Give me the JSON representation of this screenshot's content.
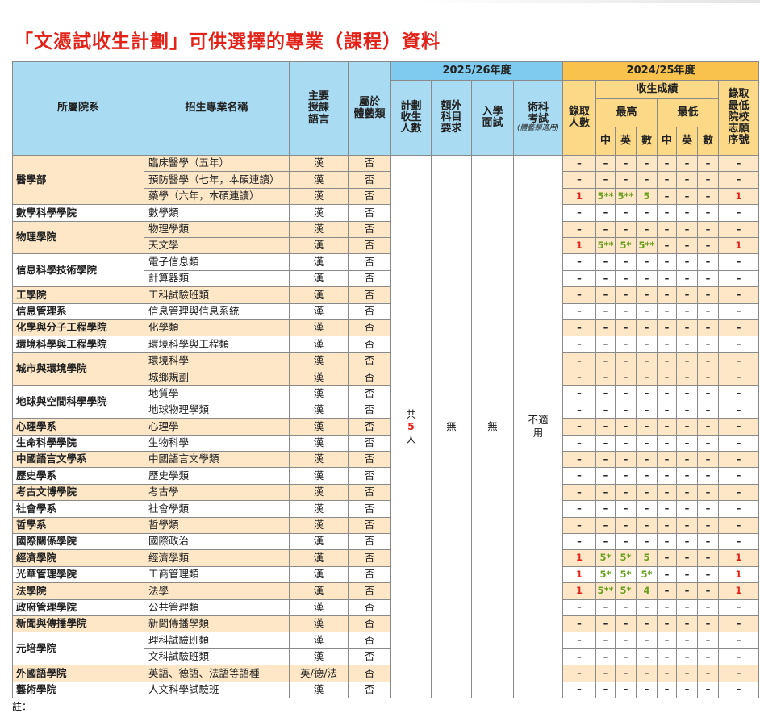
{
  "title": "「文憑試收生計劃」可供選擇的專業（課程）資料",
  "table": {
    "header": {
      "dept": "所屬院系",
      "program": "招生專業名稱",
      "language": "主要\n授課\n語言",
      "arts": "屬於\n體藝類",
      "year_2025": "2025/26年度",
      "plan_intake": "計劃\n收生\n人數",
      "extra_subject": "額外\n科目\n要求",
      "interview": "入學\n面試",
      "skills_test": "術科\n考試",
      "skills_test_note": "(體藝類適用)",
      "year_2024": "2024/25年度",
      "admitted": "錄取\n人數",
      "scores": "收生成績",
      "highest": "最高",
      "lowest": "最低",
      "subjects": [
        "中",
        "英",
        "數"
      ],
      "min_preference": "錄取\n最低\n院校\n志願\n序號"
    },
    "merged": {
      "intake": [
        "共",
        5,
        "人"
      ],
      "extra_subject": "無",
      "interview": "無",
      "skills_test": "不適\n用"
    },
    "groups": [
      {
        "dept": "醫學部",
        "programs": [
          {
            "name": "臨床醫學（五年）",
            "lang": "漢",
            "arts": "否",
            "results": [
              "–",
              "–",
              "–",
              "–",
              "–",
              "–",
              "–",
              "–"
            ]
          },
          {
            "name": "預防醫學（七年，本碩連讀）",
            "lang": "漢",
            "arts": "否",
            "results": [
              "–",
              "–",
              "–",
              "–",
              "–",
              "–",
              "–",
              "–"
            ]
          },
          {
            "name": "藥學（六年，本碩連讀）",
            "lang": "漢",
            "arts": "否",
            "results": [
              1,
              "5**",
              "5**",
              5,
              "–",
              "–",
              "–",
              1
            ]
          }
        ]
      },
      {
        "dept": "數學科學學院",
        "programs": [
          {
            "name": "數學類",
            "lang": "漢",
            "arts": "否",
            "results": [
              "–",
              "–",
              "–",
              "–",
              "–",
              "–",
              "–",
              "–"
            ]
          }
        ]
      },
      {
        "dept": "物理學院",
        "programs": [
          {
            "name": "物理學類",
            "lang": "漢",
            "arts": "否",
            "results": [
              "–",
              "–",
              "–",
              "–",
              "–",
              "–",
              "–",
              "–"
            ]
          },
          {
            "name": "天文學",
            "lang": "漢",
            "arts": "否",
            "results": [
              1,
              "5**",
              "5*",
              "5**",
              "–",
              "–",
              "–",
              1
            ]
          }
        ]
      },
      {
        "dept": "信息科學技術學院",
        "programs": [
          {
            "name": "電子信息類",
            "lang": "漢",
            "arts": "否",
            "results": [
              "–",
              "–",
              "–",
              "–",
              "–",
              "–",
              "–",
              "–"
            ]
          },
          {
            "name": "計算器類",
            "lang": "漢",
            "arts": "否",
            "results": [
              "–",
              "–",
              "–",
              "–",
              "–",
              "–",
              "–",
              "–"
            ]
          }
        ]
      },
      {
        "dept": "工學院",
        "programs": [
          {
            "name": "工科試驗班類",
            "lang": "漢",
            "arts": "否",
            "results": [
              "–",
              "–",
              "–",
              "–",
              "–",
              "–",
              "–",
              "–"
            ]
          }
        ]
      },
      {
        "dept": "信息管理系",
        "programs": [
          {
            "name": "信息管理與信息系統",
            "lang": "漢",
            "arts": "否",
            "results": [
              "–",
              "–",
              "–",
              "–",
              "–",
              "–",
              "–",
              "–"
            ]
          }
        ]
      },
      {
        "dept": "化學與分子工程學院",
        "programs": [
          {
            "name": "化學類",
            "lang": "漢",
            "arts": "否",
            "results": [
              "–",
              "–",
              "–",
              "–",
              "–",
              "–",
              "–",
              "–"
            ]
          }
        ]
      },
      {
        "dept": "環境科學與工程學院",
        "programs": [
          {
            "name": "環境科學與工程類",
            "lang": "漢",
            "arts": "否",
            "results": [
              "–",
              "–",
              "–",
              "–",
              "–",
              "–",
              "–",
              "–"
            ]
          }
        ]
      },
      {
        "dept": "城市與環境學院",
        "programs": [
          {
            "name": "環境科學",
            "lang": "漢",
            "arts": "否",
            "results": [
              "–",
              "–",
              "–",
              "–",
              "–",
              "–",
              "–",
              "–"
            ]
          },
          {
            "name": "城鄉規劃",
            "lang": "漢",
            "arts": "否",
            "results": [
              "–",
              "–",
              "–",
              "–",
              "–",
              "–",
              "–",
              "–"
            ]
          }
        ]
      },
      {
        "dept": "地球與空間科學學院",
        "programs": [
          {
            "name": "地質學",
            "lang": "漢",
            "arts": "否",
            "results": [
              "–",
              "–",
              "–",
              "–",
              "–",
              "–",
              "–",
              "–"
            ]
          },
          {
            "name": "地球物理學類",
            "lang": "漢",
            "arts": "否",
            "results": [
              "–",
              "–",
              "–",
              "–",
              "–",
              "–",
              "–",
              "–"
            ]
          }
        ]
      },
      {
        "dept": "心理學系",
        "programs": [
          {
            "name": "心理學",
            "lang": "漢",
            "arts": "否",
            "results": [
              "–",
              "–",
              "–",
              "–",
              "–",
              "–",
              "–",
              "–"
            ]
          }
        ]
      },
      {
        "dept": "生命科學學院",
        "programs": [
          {
            "name": "生物科學",
            "lang": "漢",
            "arts": "否",
            "results": [
              "–",
              "–",
              "–",
              "–",
              "–",
              "–",
              "–",
              "–"
            ]
          }
        ]
      },
      {
        "dept": "中國語言文學系",
        "programs": [
          {
            "name": "中國語言文學類",
            "lang": "漢",
            "arts": "否",
            "results": [
              "–",
              "–",
              "–",
              "–",
              "–",
              "–",
              "–",
              "–"
            ]
          }
        ]
      },
      {
        "dept": "歷史學系",
        "programs": [
          {
            "name": "歷史學類",
            "lang": "漢",
            "arts": "否",
            "results": [
              "–",
              "–",
              "–",
              "–",
              "–",
              "–",
              "–",
              "–"
            ]
          }
        ]
      },
      {
        "dept": "考古文博學院",
        "programs": [
          {
            "name": "考古學",
            "lang": "漢",
            "arts": "否",
            "results": [
              "–",
              "–",
              "–",
              "–",
              "–",
              "–",
              "–",
              "–"
            ]
          }
        ]
      },
      {
        "dept": "社會學系",
        "programs": [
          {
            "name": "社會學類",
            "lang": "漢",
            "arts": "否",
            "results": [
              "–",
              "–",
              "–",
              "–",
              "–",
              "–",
              "–",
              "–"
            ]
          }
        ]
      },
      {
        "dept": "哲學系",
        "programs": [
          {
            "name": "哲學類",
            "lang": "漢",
            "arts": "否",
            "results": [
              "–",
              "–",
              "–",
              "–",
              "–",
              "–",
              "–",
              "–"
            ]
          }
        ]
      },
      {
        "dept": "國際關係學院",
        "programs": [
          {
            "name": "國際政治",
            "lang": "漢",
            "arts": "否",
            "results": [
              "–",
              "–",
              "–",
              "–",
              "–",
              "–",
              "–",
              "–"
            ]
          }
        ]
      },
      {
        "dept": "經濟學院",
        "programs": [
          {
            "name": "經濟學類",
            "lang": "漢",
            "arts": "否",
            "results": [
              1,
              "5*",
              "5*",
              5,
              "–",
              "–",
              "–",
              1
            ]
          }
        ]
      },
      {
        "dept": "光華管理學院",
        "programs": [
          {
            "name": "工商管理類",
            "lang": "漢",
            "arts": "否",
            "results": [
              1,
              "5*",
              "5*",
              "5*",
              "–",
              "–",
              "–",
              1
            ]
          }
        ]
      },
      {
        "dept": "法學院",
        "programs": [
          {
            "name": "法學",
            "lang": "漢",
            "arts": "否",
            "results": [
              1,
              "5**",
              "5*",
              4,
              "–",
              "–",
              "–",
              1
            ]
          }
        ]
      },
      {
        "dept": "政府管理學院",
        "programs": [
          {
            "name": "公共管理類",
            "lang": "漢",
            "arts": "否",
            "results": [
              "–",
              "–",
              "–",
              "–",
              "–",
              "–",
              "–",
              "–"
            ]
          }
        ]
      },
      {
        "dept": "新聞與傳播學院",
        "programs": [
          {
            "name": "新聞傳播學類",
            "lang": "漢",
            "arts": "否",
            "results": [
              "–",
              "–",
              "–",
              "–",
              "–",
              "–",
              "–",
              "–"
            ]
          }
        ]
      },
      {
        "dept": "元培學院",
        "programs": [
          {
            "name": "理科試驗班類",
            "lang": "漢",
            "arts": "否",
            "results": [
              "–",
              "–",
              "–",
              "–",
              "–",
              "–",
              "–",
              "–"
            ]
          },
          {
            "name": "文科試驗班類",
            "lang": "漢",
            "arts": "否",
            "results": [
              "–",
              "–",
              "–",
              "–",
              "–",
              "–",
              "–",
              "–"
            ]
          }
        ]
      },
      {
        "dept": "外國語學院",
        "programs": [
          {
            "name": "英語、德語、法語等語種",
            "lang": "英/德/法",
            "arts": "否",
            "results": [
              "–",
              "–",
              "–",
              "–",
              "–",
              "–",
              "–",
              "–"
            ]
          }
        ]
      },
      {
        "dept": "藝術學院",
        "programs": [
          {
            "name": "人文科學試驗班",
            "lang": "漢",
            "arts": "否",
            "results": [
              "–",
              "–",
              "–",
              "–",
              "–",
              "–",
              "–",
              "–"
            ]
          }
        ]
      }
    ]
  },
  "note_label": "註："
}
